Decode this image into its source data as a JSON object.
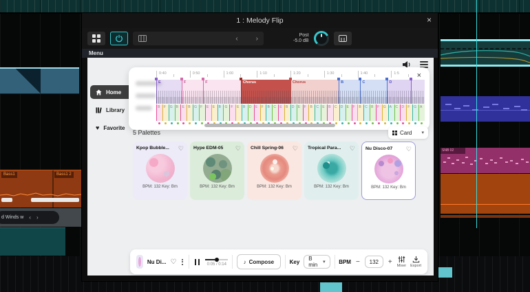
{
  "window": {
    "title": "1 : Melody Flip",
    "close": "×"
  },
  "toolbar": {
    "post_label": "Post",
    "gain_value": "-5.0 dB",
    "prev": "‹",
    "next": "›"
  },
  "menu_bar": {
    "label": "Menu"
  },
  "sidebar": {
    "items": [
      {
        "label": "Home"
      },
      {
        "label": "Library"
      },
      {
        "label": "Favorite"
      }
    ]
  },
  "overlay": {
    "close": "×",
    "ruler_labels": [
      "0:40",
      "0:50",
      "1:00",
      "1:10",
      "1:20",
      "1:30",
      "1:40",
      "1:5"
    ],
    "sections": [
      {
        "label": "E",
        "type": "purple",
        "w": 9.5
      },
      {
        "label": "F",
        "type": "pink",
        "w": 8
      },
      {
        "label": "F",
        "type": "pink",
        "w": 14
      },
      {
        "label": "Chorus",
        "type": "chorus-active",
        "w": 18.5
      },
      {
        "label": "Chorus",
        "type": "chorus",
        "w": 18
      },
      {
        "label": "B",
        "type": "blue",
        "w": 8
      },
      {
        "label": "C",
        "type": "blue",
        "w": 10
      },
      {
        "label": "D",
        "type": "purple2",
        "w": 9
      },
      {
        "label": "",
        "type": "purple",
        "w": 5
      }
    ],
    "chords": [
      "B",
      "F",
      "G",
      "B",
      "E",
      "B",
      "G",
      "F",
      "E",
      "E",
      "B",
      "G",
      "F",
      "E",
      "B",
      "D",
      "E",
      "F",
      "B",
      "C",
      "E",
      "B",
      "D",
      "E",
      "F",
      "B",
      "C",
      "E",
      "B",
      "C",
      "D",
      "E",
      "F",
      "B",
      "C",
      "B",
      "F",
      "G",
      "A",
      "C",
      "D",
      "F",
      "G",
      "A"
    ]
  },
  "palettes": {
    "count_label": "5 Palettes",
    "view": {
      "label": "Card",
      "caret": "▾"
    },
    "cards": [
      {
        "name": "Kpop Bubble...",
        "meta": "BPM: 132 Key: Bm",
        "heart": "♡"
      },
      {
        "name": "Hype EDM-05",
        "meta": "BPM: 132 Key: Bm",
        "heart": "♡"
      },
      {
        "name": "Chill Spring-06",
        "meta": "BPM: 132 Key: Bm",
        "heart": "♡"
      },
      {
        "name": "Tropical Para...",
        "meta": "BPM: 132 Key: Bm",
        "heart": "♡"
      },
      {
        "name": "Nu Disco-07",
        "meta": "BPM: 132 Key: Bm",
        "heart": "♡"
      }
    ]
  },
  "player": {
    "track_name": "Nu Di...",
    "heart": "♡",
    "time": "0:05 / 0:14",
    "note": "♪",
    "compose_label": "Compose",
    "key_label": "Key",
    "key_value": "B min",
    "key_caret": "▾",
    "bpm_label": "BPM",
    "bpm_minus": "−",
    "bpm_value": "132",
    "bpm_plus": "+",
    "mixer_label": "Mixer",
    "export_label": "Export"
  },
  "daw": {
    "bass_clip_1": "Bass1",
    "bass_clip_2": "Bass1 2",
    "snare_clip": "SNB 02",
    "preset_pill": "d Winds w",
    "pill_prev": "‹",
    "pill_next": "›"
  }
}
